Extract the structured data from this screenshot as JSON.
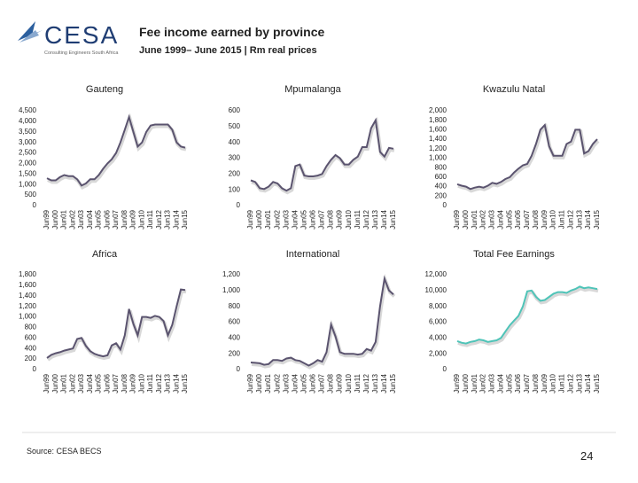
{
  "header": {
    "logo": "CESA",
    "logo_tagline": "Consulting Engineers South Africa",
    "title": "Fee income earned by province",
    "subtitle": "June 1999– June 2015 | Rm real prices"
  },
  "footer": {
    "source": "Source: CESA BECS",
    "page": "24"
  },
  "chart_data": [
    {
      "type": "line",
      "title": "Gauteng",
      "color": "#5b546f",
      "categories": [
        "Jun99",
        null,
        "Jun00",
        null,
        "Jun01",
        null,
        "Jun02",
        null,
        "Jun03",
        null,
        "Jun04",
        null,
        "Jun05",
        null,
        "Jun06",
        null,
        "Jun07",
        null,
        "Jun08",
        null,
        "Jun09",
        null,
        "Jun10",
        null,
        "Jun11",
        null,
        "Jun12",
        null,
        "Jun13",
        null,
        "Jun14",
        null,
        "Jun15"
      ],
      "values": [
        1300,
        1200,
        1200,
        1350,
        1450,
        1400,
        1400,
        1250,
        950,
        1050,
        1250,
        1250,
        1450,
        1750,
        2000,
        2200,
        2500,
        3000,
        3600,
        4200,
        3500,
        2800,
        3000,
        3500,
        3800,
        3850,
        3850,
        3850,
        3850,
        3600,
        3000,
        2800,
        2750
      ],
      "ylim": [
        0,
        4500
      ],
      "yticks": [
        0,
        500,
        {
          "value": 1000,
          "label": "1,000"
        },
        {
          "value": 1500,
          "label": "1,500"
        },
        {
          "value": 2000,
          "label": "2,000"
        },
        {
          "value": 2500,
          "label": "2,500"
        },
        {
          "value": 3000,
          "label": "3,000"
        },
        {
          "value": 3500,
          "label": "3,500"
        },
        {
          "value": 4000,
          "label": "4,000"
        },
        {
          "value": 4500,
          "label": "4,500"
        }
      ],
      "grid": false
    },
    {
      "type": "line",
      "title": "Mpumalanga",
      "color": "#5b546f",
      "categories": [
        "Jun99",
        null,
        "Jun00",
        null,
        "Jun01",
        null,
        "Jun02",
        null,
        "Jun03",
        null,
        "Jun04",
        null,
        "Jun05",
        null,
        "Jun06",
        null,
        "Jun07",
        null,
        "Jun08",
        null,
        "Jun09",
        null,
        "Jun10",
        null,
        "Jun11",
        null,
        "Jun12",
        null,
        "Jun13",
        null,
        "Jun14",
        null,
        "Jun15"
      ],
      "values": [
        160,
        150,
        110,
        105,
        120,
        150,
        140,
        110,
        95,
        110,
        250,
        260,
        190,
        185,
        185,
        190,
        200,
        250,
        290,
        320,
        300,
        260,
        260,
        290,
        310,
        370,
        370,
        490,
        540,
        340,
        310,
        365,
        360
      ],
      "ylim": [
        0,
        600
      ],
      "yticks": [
        0,
        100,
        200,
        300,
        400,
        500,
        600
      ],
      "grid": false
    },
    {
      "type": "line",
      "title": "Kwazulu Natal",
      "color": "#5b546f",
      "categories": [
        "Jun99",
        null,
        "Jun00",
        null,
        "Jun01",
        null,
        "Jun02",
        null,
        "Jun03",
        null,
        "Jun04",
        null,
        "Jun05",
        null,
        "Jun06",
        null,
        "Jun07",
        null,
        "Jun08",
        null,
        "Jun09",
        null,
        "Jun10",
        null,
        "Jun11",
        null,
        "Jun12",
        null,
        "Jun13",
        null,
        "Jun14",
        null,
        "Jun15"
      ],
      "values": [
        450,
        420,
        400,
        350,
        380,
        400,
        380,
        420,
        480,
        460,
        500,
        560,
        600,
        700,
        780,
        850,
        880,
        1050,
        1300,
        1600,
        1700,
        1250,
        1050,
        1050,
        1050,
        1300,
        1350,
        1600,
        1600,
        1100,
        1150,
        1300,
        1400
      ],
      "ylim": [
        0,
        2000
      ],
      "yticks": [
        0,
        200,
        400,
        600,
        800,
        {
          "value": 1000,
          "label": "1,000"
        },
        {
          "value": 1200,
          "label": "1,200"
        },
        {
          "value": 1400,
          "label": "1,400"
        },
        {
          "value": 1600,
          "label": "1,600"
        },
        {
          "value": 1800,
          "label": "1,800"
        },
        {
          "value": 2000,
          "label": "2,000"
        }
      ],
      "grid": false
    },
    {
      "type": "line",
      "title": "Africa",
      "color": "#5b546f",
      "categories": [
        "Jun99",
        null,
        "Jun00",
        null,
        "Jun01",
        null,
        "Jun02",
        null,
        "Jun03",
        null,
        "Jun04",
        null,
        "Jun05",
        null,
        "Jun06",
        null,
        "Jun07",
        null,
        "Jun08",
        null,
        "Jun09",
        null,
        "Jun10",
        null,
        "Jun11",
        null,
        "Jun12",
        null,
        "Jun13",
        null,
        "Jun14",
        null,
        "Jun15"
      ],
      "values": [
        220,
        280,
        310,
        330,
        360,
        380,
        400,
        580,
        600,
        450,
        350,
        300,
        270,
        250,
        270,
        460,
        500,
        380,
        650,
        1150,
        870,
        650,
        1000,
        1000,
        980,
        1020,
        1000,
        920,
        650,
        850,
        1200,
        1520,
        1510
      ],
      "ylim": [
        0,
        1800
      ],
      "yticks": [
        0,
        200,
        400,
        600,
        800,
        {
          "value": 1000,
          "label": "1,000"
        },
        {
          "value": 1200,
          "label": "1,200"
        },
        {
          "value": 1400,
          "label": "1,400"
        },
        {
          "value": 1600,
          "label": "1,600"
        },
        {
          "value": 1800,
          "label": "1,800"
        }
      ],
      "grid": false
    },
    {
      "type": "line",
      "title": "International",
      "color": "#5b546f",
      "categories": [
        "Jun99",
        null,
        "Jun00",
        null,
        "Jun01",
        null,
        "Jun02",
        null,
        "Jun03",
        null,
        "Jun04",
        null,
        "Jun05",
        null,
        "Jun06",
        null,
        "Jun07",
        null,
        "Jun08",
        null,
        "Jun09",
        null,
        "Jun10",
        null,
        "Jun11",
        null,
        "Jun12",
        null,
        "Jun13",
        null,
        "Jun14",
        null,
        "Jun15"
      ],
      "values": [
        90,
        85,
        80,
        60,
        70,
        120,
        120,
        110,
        140,
        150,
        120,
        110,
        80,
        50,
        80,
        120,
        100,
        220,
        570,
        420,
        220,
        200,
        200,
        200,
        190,
        200,
        260,
        240,
        350,
        800,
        1150,
        1000,
        950
      ],
      "ylim": [
        0,
        1200
      ],
      "yticks": [
        0,
        200,
        400,
        600,
        800,
        {
          "value": 1000,
          "label": "1,000"
        },
        {
          "value": 1200,
          "label": "1,200"
        }
      ],
      "grid": false
    },
    {
      "type": "line",
      "title": "Total Fee Earnings",
      "color": "#4fc4b8",
      "categories": [
        "Jun99",
        null,
        "Jun00",
        null,
        "Jun01",
        null,
        "Jun02",
        null,
        "Jun03",
        null,
        "Jun04",
        null,
        "Jun05",
        null,
        "Jun06",
        null,
        "Jun07",
        null,
        "Jun08",
        null,
        "Jun09",
        null,
        "Jun10",
        null,
        "Jun11",
        null,
        "Jun12",
        null,
        "Jun13",
        null,
        "Jun14",
        null,
        "Jun15"
      ],
      "values": [
        3600,
        3400,
        3300,
        3500,
        3600,
        3800,
        3700,
        3500,
        3600,
        3700,
        4000,
        4800,
        5600,
        6200,
        6800,
        8000,
        9900,
        10000,
        9200,
        8700,
        8800,
        9200,
        9600,
        9800,
        9800,
        9700,
        10000,
        10200,
        10500,
        10300,
        10400,
        10300,
        10200
      ],
      "ylim": [
        0,
        12000
      ],
      "yticks": [
        0,
        {
          "value": 2000,
          "label": "2,000"
        },
        {
          "value": 4000,
          "label": "4,000"
        },
        {
          "value": 6000,
          "label": "6,000"
        },
        {
          "value": 8000,
          "label": "8,000"
        },
        {
          "value": 10000,
          "label": "10,000"
        },
        {
          "value": 12000,
          "label": "12,000"
        }
      ],
      "grid": false
    }
  ]
}
